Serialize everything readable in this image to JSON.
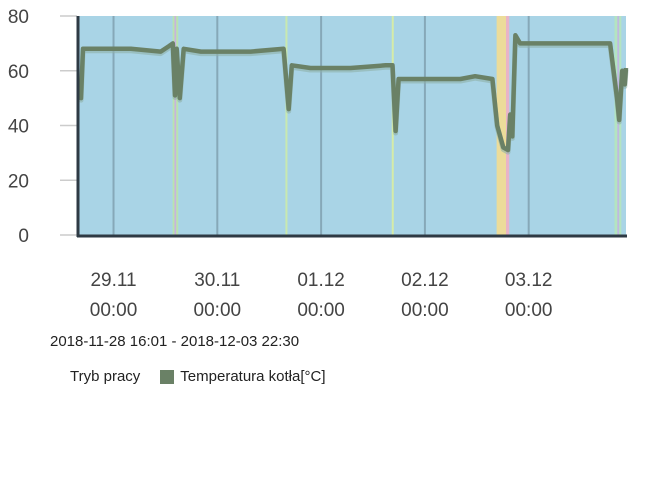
{
  "chart_data": {
    "type": "line",
    "title": "",
    "xlabel": "",
    "ylabel": "",
    "ylim": [
      0,
      80
    ],
    "yticks": [
      "0",
      "20",
      "40",
      "60",
      "80"
    ],
    "xlim": [
      "2018-11-28T16:01",
      "2018-12-03T22:30"
    ],
    "xticks": [
      {
        "date": "2018-11-29T00:00",
        "line1": "29.11",
        "line2": "00:00"
      },
      {
        "date": "2018-11-30T00:00",
        "line1": "30.11",
        "line2": "00:00"
      },
      {
        "date": "2018-12-01T00:00",
        "line1": "01.12",
        "line2": "00:00"
      },
      {
        "date": "2018-12-02T00:00",
        "line1": "02.12",
        "line2": "00:00"
      },
      {
        "date": "2018-12-03T00:00",
        "line1": "03.12",
        "line2": "00:00"
      }
    ],
    "grid": "vertical",
    "background_color": "#a9d4e6",
    "mode_bands": [
      {
        "start": "2018-11-29T13:40",
        "end": "2018-11-29T14:05",
        "color": "#b9e3b0"
      },
      {
        "start": "2018-11-29T14:05",
        "end": "2018-11-29T14:30",
        "color": "#c8b4dc"
      },
      {
        "start": "2018-11-29T14:30",
        "end": "2018-11-29T14:50",
        "color": "#b9e3b0"
      },
      {
        "start": "2018-11-30T15:45",
        "end": "2018-11-30T16:10",
        "color": "#c9e9b0"
      },
      {
        "start": "2018-12-01T16:20",
        "end": "2018-12-01T16:45",
        "color": "#d6eca8"
      },
      {
        "start": "2018-12-02T16:35",
        "end": "2018-12-02T18:45",
        "color": "#ecdc9a"
      },
      {
        "start": "2018-12-02T18:45",
        "end": "2018-12-02T19:30",
        "color": "#e8b4c8"
      },
      {
        "start": "2018-12-03T19:50",
        "end": "2018-12-03T20:30",
        "color": "#b4e4c0"
      },
      {
        "start": "2018-12-03T20:30",
        "end": "2018-12-03T20:55",
        "color": "#c0b8e0"
      },
      {
        "start": "2018-12-03T20:55",
        "end": "2018-12-03T21:25",
        "color": "#b4e4c0"
      }
    ],
    "series": [
      {
        "name": "Temperatura kotła[°C]",
        "color": "#6a8166",
        "points": [
          [
            "2018-11-28T16:01",
            55
          ],
          [
            "2018-11-28T16:29",
            50
          ],
          [
            "2018-11-28T16:56",
            68
          ],
          [
            "2018-11-28T21:06",
            68
          ],
          [
            "2018-11-29T04:01",
            68
          ],
          [
            "2018-11-29T10:55",
            67
          ],
          [
            "2018-11-29T12:49",
            69
          ],
          [
            "2018-11-29T13:43",
            70
          ],
          [
            "2018-11-29T14:13",
            51
          ],
          [
            "2018-11-29T14:37",
            68
          ],
          [
            "2018-11-29T15:19",
            50
          ],
          [
            "2018-11-29T16:13",
            68
          ],
          [
            "2018-11-29T20:13",
            67
          ],
          [
            "2018-11-30T07:43",
            67
          ],
          [
            "2018-11-30T15:19",
            68
          ],
          [
            "2018-11-30T16:31",
            46
          ],
          [
            "2018-11-30T17:13",
            62
          ],
          [
            "2018-11-30T21:31",
            61
          ],
          [
            "2018-12-01T06:49",
            61
          ],
          [
            "2018-12-01T14:55",
            62
          ],
          [
            "2018-12-01T16:31",
            62
          ],
          [
            "2018-12-01T17:13",
            38
          ],
          [
            "2018-12-01T17:55",
            57
          ],
          [
            "2018-12-01T22:55",
            57
          ],
          [
            "2018-12-02T08:13",
            57
          ],
          [
            "2018-12-02T11:37",
            58
          ],
          [
            "2018-12-02T15:37",
            57
          ],
          [
            "2018-12-02T16:43",
            40
          ],
          [
            "2018-12-02T18:07",
            32
          ],
          [
            "2018-12-02T19:13",
            31
          ],
          [
            "2018-12-02T19:43",
            44
          ],
          [
            "2018-12-02T20:13",
            36
          ],
          [
            "2018-12-02T20:55",
            73
          ],
          [
            "2018-12-02T22:01",
            70
          ],
          [
            "2018-12-03T04:55",
            70
          ],
          [
            "2018-12-03T16:31",
            70
          ],
          [
            "2018-12-03T18:49",
            70
          ],
          [
            "2018-12-03T20:25",
            50
          ],
          [
            "2018-12-03T20:55",
            42
          ],
          [
            "2018-12-03T21:37",
            60
          ],
          [
            "2018-12-03T22:13",
            55
          ],
          [
            "2018-12-03T22:30",
            61
          ]
        ]
      }
    ],
    "legend": {
      "placement": "bottom-left",
      "items": [
        {
          "label": "Tryb pracy"
        },
        {
          "label": "Temperatura kotła[°C]",
          "color": "#6a8166"
        }
      ]
    },
    "range_label": "2018-11-28 16:01 - 2018-12-03 22:30"
  }
}
